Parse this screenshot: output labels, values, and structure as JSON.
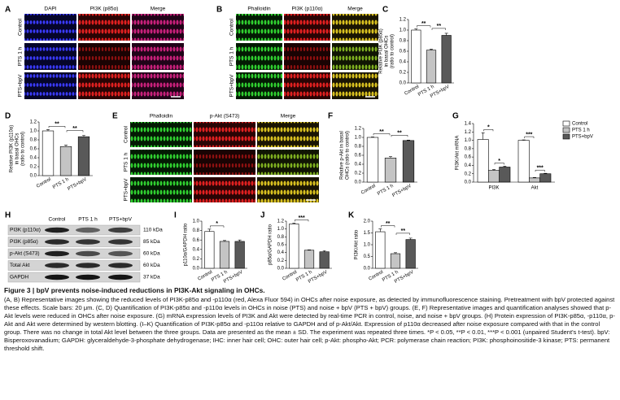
{
  "micrographs": [
    {
      "label": "A",
      "columns": [
        "DAPI",
        "PI3K (p85α)",
        "Merge"
      ],
      "rows": [
        "Control",
        "PTS 1 h",
        "PTS+bpV"
      ]
    },
    {
      "label": "B",
      "columns": [
        "Phalloidin",
        "PI3K (p110α)",
        "Merge"
      ],
      "rows": [
        "Control",
        "PTS 1 h",
        "PTS+bpV"
      ]
    },
    {
      "label": "E",
      "columns": [
        "Phalloidin",
        "p-Akt (S473)",
        "Merge"
      ],
      "rows": [
        "Control",
        "PTS 1 h",
        "PTS+bpV"
      ]
    }
  ],
  "western_blot": {
    "label": "H",
    "lanes": [
      "Control",
      "PTS 1 h",
      "PTS+bpV"
    ],
    "rows": [
      {
        "protein": "PI3K (p110α)",
        "size": "110 kDa"
      },
      {
        "protein": "PI3K (p85α)",
        "size": "85 kDa"
      },
      {
        "protein": "p-Akt (S473)",
        "size": "60 kDa"
      },
      {
        "protein": "Total Akt",
        "size": "60 kDa"
      },
      {
        "protein": "GAPDH",
        "size": "37 kDa"
      }
    ]
  },
  "chart_data": [
    {
      "type": "bar",
      "label": "C",
      "ylabel": [
        "Relative PI3K (p85α)",
        "in basal OHCs",
        "(ratio to control)"
      ],
      "categories": [
        "Control",
        "PTS 1 h",
        "PTS+bpV"
      ],
      "values": [
        1.0,
        0.62,
        0.9
      ],
      "errors": [
        0.02,
        0.02,
        0.04
      ],
      "colors": [
        "#ffffff",
        "#c4c4c4",
        "#595959"
      ],
      "ylim": [
        0,
        1.2
      ],
      "yticks": [
        {
          "value": 0,
          "label": "0.0"
        },
        0.2,
        0.4,
        0.6,
        0.8,
        {
          "value": 1,
          "label": "1.0"
        },
        1.2
      ],
      "significance": [
        {
          "label": "**",
          "from": 0,
          "to": 1
        },
        {
          "label": "**",
          "from": 1,
          "to": 2
        }
      ]
    },
    {
      "type": "bar",
      "label": "D",
      "ylabel": [
        "Relative PI3K (p110α)",
        "in basal OHCs",
        "(ratio to control)"
      ],
      "categories": [
        "Control",
        "PTS 1 h",
        "PTS+bpV"
      ],
      "values": [
        1.0,
        0.65,
        0.87
      ],
      "errors": [
        0.03,
        0.03,
        0.03
      ],
      "colors": [
        "#ffffff",
        "#c4c4c4",
        "#595959"
      ],
      "ylim": [
        0,
        1.2
      ],
      "yticks": [
        {
          "value": 0,
          "label": "0.0"
        },
        0.2,
        0.4,
        0.6,
        0.8,
        {
          "value": 1,
          "label": "1.0"
        },
        1.2
      ],
      "significance": [
        {
          "label": "**",
          "from": 0,
          "to": 1
        },
        {
          "label": "**",
          "from": 1,
          "to": 2
        }
      ]
    },
    {
      "type": "bar",
      "label": "F",
      "ylabel": [
        "Relative p-Akt in basal",
        "OHCs (ratio to control)"
      ],
      "categories": [
        "Control",
        "PTS 1 h",
        "PTS+bpV"
      ],
      "values": [
        1.0,
        0.54,
        0.93
      ],
      "errors": [
        0.01,
        0.03,
        0.01
      ],
      "colors": [
        "#ffffff",
        "#c4c4c4",
        "#595959"
      ],
      "ylim": [
        0,
        1.2
      ],
      "yticks": [
        {
          "value": 0,
          "label": "0.0"
        },
        0.2,
        0.4,
        0.6,
        0.8,
        {
          "value": 1,
          "label": "1.0"
        },
        1.2
      ],
      "significance": [
        {
          "label": "**",
          "from": 0,
          "to": 1
        },
        {
          "label": "**",
          "from": 1,
          "to": 2
        }
      ]
    },
    {
      "type": "grouped_bar",
      "label": "G",
      "ylabel": [
        "PI3K/Akt mRNA"
      ],
      "categories": [
        "PI3K",
        "Akt"
      ],
      "series": [
        {
          "name": "Control",
          "color": "#ffffff",
          "values": [
            1.02,
            1.0
          ],
          "errors": [
            0.16,
            0.01
          ]
        },
        {
          "name": "PTS 1 h",
          "color": "#c4c4c4",
          "values": [
            0.28,
            0.1
          ],
          "errors": [
            0.02,
            0.01
          ]
        },
        {
          "name": "PTS+bpV",
          "color": "#595959",
          "values": [
            0.36,
            0.2
          ],
          "errors": [
            0.02,
            0.01
          ]
        }
      ],
      "ylim": [
        0,
        1.4
      ],
      "yticks": [
        {
          "value": 0,
          "label": "0.0"
        },
        0.2,
        0.4,
        0.6,
        0.8,
        {
          "value": 1,
          "label": "1.0"
        },
        1.2,
        1.4
      ],
      "significance": [
        {
          "label": "*",
          "group": 0,
          "from": 0,
          "to": 1
        },
        {
          "label": "*",
          "group": 0,
          "from": 1,
          "to": 2
        },
        {
          "label": "***",
          "group": 1,
          "from": 0,
          "to": 1
        },
        {
          "label": "***",
          "group": 1,
          "from": 1,
          "to": 2
        }
      ]
    },
    {
      "type": "bar",
      "label": "I",
      "ylabel": [
        "p110α/GAPDH ratio"
      ],
      "categories": [
        "Control",
        "PTS 1 h",
        "PTS+bpV"
      ],
      "values": [
        0.78,
        0.57,
        0.57
      ],
      "errors": [
        0.05,
        0.02,
        0.03
      ],
      "colors": [
        "#ffffff",
        "#c4c4c4",
        "#595959"
      ],
      "ylim": [
        0,
        1.0
      ],
      "yticks": [
        {
          "value": 0,
          "label": "0.0"
        },
        0.2,
        0.4,
        0.6,
        0.8,
        {
          "value": 1,
          "label": "1.0"
        }
      ],
      "significance": [
        {
          "label": "*",
          "from": 0,
          "to": 1
        }
      ]
    },
    {
      "type": "bar",
      "label": "J",
      "ylabel": [
        "p85α/GAPDH ratio"
      ],
      "categories": [
        "Control",
        "PTS 1 h",
        "PTS+bpV"
      ],
      "values": [
        1.13,
        0.46,
        0.42
      ],
      "errors": [
        0.02,
        0.01,
        0.03
      ],
      "colors": [
        "#ffffff",
        "#c4c4c4",
        "#595959"
      ],
      "ylim": [
        0,
        1.2
      ],
      "yticks": [
        {
          "value": 0,
          "label": "0.0"
        },
        0.2,
        0.4,
        0.6,
        0.8,
        {
          "value": 1,
          "label": "1.0"
        },
        1.2
      ],
      "significance": [
        {
          "label": "***",
          "from": 0,
          "to": 1
        }
      ]
    },
    {
      "type": "bar",
      "label": "K",
      "ylabel": [
        "PI3K/Akt ratio"
      ],
      "categories": [
        "Control",
        "PTS 1 h",
        "PTS+bpV"
      ],
      "values": [
        1.55,
        0.62,
        1.22
      ],
      "errors": [
        0.12,
        0.04,
        0.06
      ],
      "colors": [
        "#ffffff",
        "#c4c4c4",
        "#595959"
      ],
      "ylim": [
        0,
        2.0
      ],
      "yticks": [
        {
          "value": 0,
          "label": "0.0"
        },
        0.5,
        {
          "value": 1,
          "label": "1.0"
        },
        1.5,
        {
          "value": 2,
          "label": "2.0"
        }
      ],
      "significance": [
        {
          "label": "**",
          "from": 0,
          "to": 1
        },
        {
          "label": "**",
          "from": 1,
          "to": 2
        }
      ]
    }
  ],
  "caption": {
    "title": "Figure 3 | bpV prevents noise-induced reductions in PI3K-Akt signaling in OHCs.",
    "text": "(A, B) Representative images showing the reduced levels of PI3K-p85α and -p110α (red, Alexa Fluor 594) in OHCs after noise exposure, as detected by immunofluorescence staining. Pretreatment with bpV protected against these effects. Scale bars: 20 μm. (C, D) Quantification of PI3K-p85α and -p110α levels in OHCs in noise (PTS) and noise + bpV (PTS + bpV) groups. (E, F) Representative images and quantification analyses showed that p-Akt levels were reduced in OHCs after noise exposure. (G) mRNA expression levels of PI3K and Akt were detected by real-time PCR in control, noise, and noise + bpV groups. (H) Protein expression of PI3K-p85α, -p110α, p-Akt and Akt were determined by western blotting. (I–K) Quantification of PI3K-p85α and -p110α relative to GAPDH and of p-Akt/Akt. Expression of p110α decreased after noise exposure compared with that in the control group. There was no change in total Akt level between the three groups. Data are presented as the mean ± SD. The experiment was repeated three times. *P < 0.05, **P < 0.01, ***P < 0.001 (unpaired Student's t-test). bpV: Bisperoxovanadium; GAPDH: glyceraldehyde-3-phosphate dehydrogenase; IHC: inner hair cell; OHC: outer hair cell; p-Akt: phospho-Akt; PCR: polymerase chain reaction; PI3K: phosphoinositide-3 kinase; PTS: permanent threshold shift."
  }
}
